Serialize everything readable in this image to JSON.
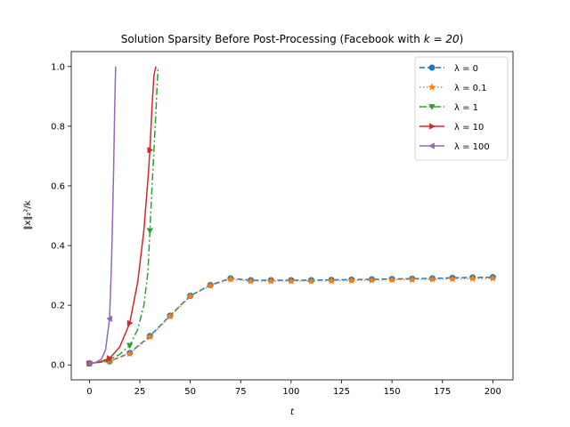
{
  "chart_data": {
    "type": "line",
    "title": "Solution Sparsity Before Post-Processing (Facebook with k = 20)",
    "title_parts": {
      "prefix": "Solution Sparsity Before Post-Processing (Facebook with ",
      "math": "k = 20",
      "suffix": ")"
    },
    "xlabel": "t",
    "ylabel": "‖x‖₂²/k",
    "xlim": [
      -9,
      210
    ],
    "ylim": [
      -0.05,
      1.05
    ],
    "xticks": [
      0,
      25,
      50,
      75,
      100,
      125,
      150,
      175,
      200
    ],
    "xtick_labels": [
      "0",
      "25",
      "50",
      "75",
      "100",
      "125",
      "150",
      "175",
      "200"
    ],
    "yticks": [
      0.0,
      0.2,
      0.4,
      0.6,
      0.8,
      1.0
    ],
    "ytick_labels": [
      "0.0",
      "0.2",
      "0.4",
      "0.6",
      "0.8",
      "1.0"
    ],
    "grid": false,
    "legend_position": "top-right",
    "series": [
      {
        "name": "λ = 0",
        "color": "#1f77b4",
        "dash": "6,3",
        "marker": "circle",
        "x": [
          0,
          10,
          20,
          30,
          40,
          50,
          60,
          70,
          80,
          90,
          100,
          110,
          120,
          130,
          140,
          150,
          160,
          170,
          180,
          190,
          200
        ],
        "y": [
          0.005,
          0.012,
          0.04,
          0.097,
          0.165,
          0.232,
          0.268,
          0.29,
          0.284,
          0.284,
          0.284,
          0.284,
          0.285,
          0.286,
          0.287,
          0.288,
          0.289,
          0.29,
          0.292,
          0.293,
          0.294
        ],
        "mx": [
          0,
          10,
          20,
          30,
          40,
          50,
          60,
          70,
          80,
          90,
          100,
          110,
          120,
          130,
          140,
          150,
          160,
          170,
          180,
          190,
          200
        ],
        "my": [
          0.005,
          0.012,
          0.04,
          0.097,
          0.165,
          0.232,
          0.268,
          0.29,
          0.284,
          0.284,
          0.284,
          0.284,
          0.285,
          0.286,
          0.287,
          0.288,
          0.289,
          0.29,
          0.292,
          0.293,
          0.294
        ]
      },
      {
        "name": "λ = 0.1",
        "color": "#ff7f0e",
        "dash": "1.5,2.5",
        "marker": "star",
        "x": [
          0,
          10,
          20,
          30,
          40,
          50,
          60,
          70,
          80,
          90,
          100,
          110,
          120,
          130,
          140,
          150,
          160,
          170,
          180,
          190,
          200
        ],
        "y": [
          0.005,
          0.012,
          0.038,
          0.094,
          0.163,
          0.23,
          0.266,
          0.287,
          0.281,
          0.281,
          0.281,
          0.281,
          0.282,
          0.283,
          0.284,
          0.285,
          0.286,
          0.287,
          0.288,
          0.289,
          0.29
        ],
        "mx": [
          0,
          10,
          20,
          30,
          40,
          50,
          60,
          70,
          80,
          90,
          100,
          110,
          120,
          130,
          140,
          150,
          160,
          170,
          180,
          190,
          200
        ],
        "my": [
          0.005,
          0.012,
          0.038,
          0.094,
          0.163,
          0.23,
          0.266,
          0.287,
          0.281,
          0.281,
          0.281,
          0.281,
          0.282,
          0.283,
          0.284,
          0.285,
          0.286,
          0.287,
          0.288,
          0.289,
          0.29
        ]
      },
      {
        "name": "λ = 1",
        "color": "#2ca02c",
        "dash": "8,3,2,3",
        "marker": "triangle-down",
        "x": [
          0,
          5,
          10,
          15,
          20,
          24,
          27,
          29,
          30,
          31,
          32,
          33,
          33.5,
          34
        ],
        "y": [
          0.005,
          0.009,
          0.018,
          0.035,
          0.065,
          0.12,
          0.2,
          0.31,
          0.45,
          0.59,
          0.72,
          0.85,
          0.93,
          0.99
        ],
        "mx": [
          0,
          10,
          20,
          30
        ],
        "my": [
          0.005,
          0.018,
          0.065,
          0.45
        ]
      },
      {
        "name": "λ = 10",
        "color": "#d62728",
        "dash": "",
        "marker": "triangle-right",
        "x": [
          0,
          5,
          10,
          15,
          20,
          24,
          27,
          29,
          30,
          31,
          32,
          33
        ],
        "y": [
          0.005,
          0.01,
          0.022,
          0.06,
          0.14,
          0.28,
          0.45,
          0.62,
          0.72,
          0.86,
          0.97,
          1.0
        ],
        "mx": [
          0,
          10,
          20,
          30
        ],
        "my": [
          0.005,
          0.022,
          0.14,
          0.72
        ]
      },
      {
        "name": "λ = 100",
        "color": "#9467bd",
        "dash": "",
        "marker": "triangle-left",
        "x": [
          0,
          3,
          6,
          8,
          10,
          11,
          12,
          12.5,
          13
        ],
        "y": [
          0.005,
          0.008,
          0.02,
          0.05,
          0.155,
          0.35,
          0.65,
          0.85,
          1.0
        ],
        "mx": [
          0,
          10
        ],
        "my": [
          0.005,
          0.155
        ]
      }
    ]
  }
}
